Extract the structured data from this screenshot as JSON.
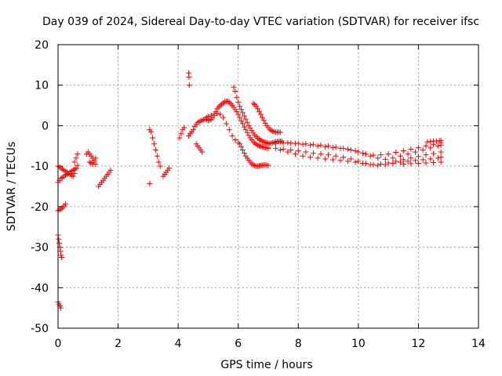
{
  "chart_data": {
    "type": "scatter",
    "title": "Day 039 of 2024, Sidereal Day-to-day VTEC variation (SDTVAR) for receiver ifsc",
    "xlabel": "GPS time / hours",
    "ylabel": "SDTVAR / TECUs",
    "xlim": [
      0,
      14
    ],
    "ylim": [
      -50,
      20
    ],
    "xticks": [
      0,
      2,
      4,
      6,
      8,
      10,
      12,
      14
    ],
    "yticks": [
      -50,
      -40,
      -30,
      -20,
      -10,
      0,
      10,
      20
    ],
    "x_tick_labels": [
      "0",
      "2",
      "4",
      "6",
      "8",
      "10",
      "12",
      "14"
    ],
    "y_tick_labels": [
      "-50",
      "-40",
      "-30",
      "-20",
      "-10",
      "0",
      "10",
      "20"
    ],
    "grid": true,
    "marker": "+",
    "color": "#ff0000",
    "segments": [
      {
        "x": [
          0.0,
          0.05,
          0.1,
          0.15,
          0.2,
          0.25,
          0.3,
          0.35,
          0.4,
          0.45,
          0.5,
          0.55,
          0.6,
          0.65
        ],
        "y": [
          -10.0,
          -10.2,
          -10.5,
          -10.8,
          -11.0,
          -11.3,
          -11.5,
          -11.8,
          -12.0,
          -12.3,
          -12.5,
          -11.8,
          -10.5,
          -9.8
        ]
      },
      {
        "x": [
          0.0,
          0.05,
          0.1,
          0.15,
          0.2,
          0.25,
          0.3,
          0.35,
          0.4,
          0.45,
          0.5,
          0.55,
          0.6
        ],
        "y": [
          -14.0,
          -13.5,
          -13.0,
          -12.8,
          -12.5,
          -12.2,
          -12.0,
          -11.8,
          -11.5,
          -11.2,
          -11.0,
          -10.8,
          -10.5
        ]
      },
      {
        "x": [
          0.0,
          0.05,
          0.1,
          0.15,
          0.2,
          0.25
        ],
        "y": [
          -21.0,
          -20.8,
          -20.5,
          -20.2,
          -19.8,
          -19.3
        ]
      },
      {
        "x": [
          0.0,
          0.02,
          0.04,
          0.06,
          0.08,
          0.1,
          0.12
        ],
        "y": [
          -27.0,
          -28.0,
          -29.0,
          -30.0,
          -31.0,
          -32.0,
          -32.5
        ]
      },
      {
        "x": [
          0.0,
          0.03,
          0.06,
          0.09
        ],
        "y": [
          -43.5,
          -44.0,
          -44.5,
          -45.0
        ]
      },
      {
        "x": [
          0.55,
          0.6,
          0.65
        ],
        "y": [
          -9.0,
          -8.0,
          -7.0
        ]
      },
      {
        "x": [
          0.95,
          1.0,
          1.05,
          1.1,
          1.15,
          1.2,
          1.25
        ],
        "y": [
          -7.0,
          -6.5,
          -7.0,
          -7.5,
          -8.0,
          -8.5,
          -9.5
        ]
      },
      {
        "x": [
          1.05,
          1.1,
          1.15,
          1.2,
          1.25
        ],
        "y": [
          -9.0,
          -9.2,
          -9.5,
          -9.0,
          -8.0
        ]
      },
      {
        "x": [
          1.35,
          1.4,
          1.45,
          1.5,
          1.55,
          1.6,
          1.65,
          1.7,
          1.75
        ],
        "y": [
          -15.0,
          -14.5,
          -14.0,
          -13.5,
          -13.0,
          -12.5,
          -12.0,
          -11.5,
          -11.0
        ]
      },
      {
        "x": [
          3.05,
          3.1,
          3.15,
          3.2,
          3.25,
          3.3,
          3.35,
          3.4
        ],
        "y": [
          -1.0,
          -1.5,
          -3.0,
          -4.5,
          -6.0,
          -7.5,
          -9.0,
          -10.0
        ]
      },
      {
        "x": [
          3.05
        ],
        "y": [
          -14.3
        ]
      },
      {
        "x": [
          3.5,
          3.55,
          3.6,
          3.65,
          3.7
        ],
        "y": [
          -12.5,
          -12.0,
          -11.5,
          -11.0,
          -10.5
        ]
      },
      {
        "x": [
          4.05,
          4.1,
          4.15,
          4.2
        ],
        "y": [
          -3.0,
          -2.0,
          -1.0,
          -0.5
        ]
      },
      {
        "x": [
          4.35,
          4.36,
          4.37
        ],
        "y": [
          13.0,
          12.0,
          10.0
        ]
      },
      {
        "x": [
          4.35,
          4.4,
          4.45,
          4.5,
          4.55,
          4.6,
          4.65,
          4.7,
          4.75,
          4.8,
          4.85,
          4.9,
          4.95,
          5.0,
          5.05,
          5.1,
          5.15,
          5.2,
          5.25,
          5.3,
          5.35,
          5.4,
          5.45,
          5.5,
          5.55,
          5.6,
          5.65,
          5.7,
          5.75,
          5.8,
          5.85,
          5.9,
          5.95,
          6.0,
          6.05,
          6.1,
          6.15,
          6.2,
          6.25,
          6.3,
          6.35,
          6.4,
          6.45,
          6.5,
          6.55,
          6.6,
          6.65,
          6.7,
          6.75,
          6.8,
          6.85,
          6.9,
          6.95,
          7.0
        ],
        "y": [
          -2.5,
          -2.0,
          -1.5,
          -1.0,
          -0.2,
          0.3,
          0.8,
          1.0,
          1.2,
          1.3,
          1.5,
          1.6,
          1.5,
          1.3,
          1.4,
          1.5,
          2.0,
          2.5,
          3.5,
          4.2,
          4.6,
          5.0,
          5.3,
          5.6,
          5.9,
          6.0,
          6.0,
          5.8,
          5.4,
          5.0,
          4.5,
          4.0,
          3.5,
          2.8,
          2.0,
          1.2,
          0.5,
          -0.3,
          -1.0,
          -1.7,
          -2.4,
          -3.0,
          -3.5,
          -4.0,
          -4.3,
          -4.6,
          -4.8,
          -5.0,
          -5.1,
          -5.2,
          -5.3,
          -5.4,
          -5.5,
          -5.6
        ]
      },
      {
        "x": [
          4.95,
          5.0,
          5.1,
          5.2,
          5.3,
          5.4,
          5.5,
          5.6,
          5.7,
          5.8,
          5.9,
          6.0
        ],
        "y": [
          2.0,
          2.3,
          2.6,
          2.9,
          3.0,
          2.8,
          2.0,
          0.5,
          -1.0,
          -2.5,
          -3.5,
          -4.2
        ]
      },
      {
        "x": [
          4.6,
          4.65,
          4.7,
          4.75,
          4.8
        ],
        "y": [
          -4.5,
          -5.0,
          -5.5,
          -6.0,
          -6.5
        ]
      },
      {
        "x": [
          5.85,
          5.9,
          5.95,
          6.0,
          6.05,
          6.1,
          6.15,
          6.2,
          6.25,
          6.3,
          6.35,
          6.4,
          6.45,
          6.5,
          6.55,
          6.6,
          6.65,
          6.7,
          6.75,
          6.8,
          6.85,
          6.9,
          6.95,
          7.0,
          7.05,
          7.1,
          7.15,
          7.2,
          7.25,
          7.3,
          7.35,
          7.4,
          7.45
        ],
        "y": [
          9.5,
          8.5,
          7.0,
          5.8,
          4.8,
          4.0,
          3.2,
          2.4,
          1.6,
          0.8,
          0.0,
          -0.6,
          -1.2,
          -1.8,
          -2.3,
          -2.7,
          -3.1,
          -3.4,
          -3.6,
          -3.8,
          -4.0,
          -4.1,
          -4.2,
          -4.3,
          -4.4,
          -4.3,
          -4.2,
          -4.1,
          -4.0,
          -3.9,
          -3.9,
          -3.8,
          -3.8
        ]
      },
      {
        "x": [
          6.05,
          6.1,
          6.15,
          6.2,
          6.25,
          6.3,
          6.35,
          6.4,
          6.45,
          6.5,
          6.55,
          6.6,
          6.65,
          6.7,
          6.75,
          6.8,
          6.85,
          6.9,
          6.95,
          7.0
        ],
        "y": [
          -4.5,
          -5.2,
          -6.0,
          -6.8,
          -7.5,
          -8.0,
          -8.5,
          -9.0,
          -9.4,
          -9.7,
          -9.9,
          -10.0,
          -10.0,
          -9.9,
          -9.8,
          -9.8,
          -9.7,
          -9.7,
          -9.8,
          -9.8
        ]
      },
      {
        "x": [
          6.5,
          6.55,
          6.6,
          6.65,
          6.7,
          6.75,
          6.8,
          6.85,
          6.9,
          6.95,
          7.0,
          7.05,
          7.1,
          7.15,
          7.2,
          7.25,
          7.3,
          7.35,
          7.4
        ],
        "y": [
          5.5,
          5.2,
          4.8,
          4.2,
          3.5,
          2.8,
          2.0,
          1.3,
          0.6,
          0.0,
          -0.5,
          -0.9,
          -1.2,
          -1.4,
          -1.5,
          -1.6,
          -1.6,
          -1.6,
          -1.6
        ]
      },
      {
        "x": [
          7.0,
          7.25,
          7.5,
          7.75,
          8.0,
          8.25,
          8.5,
          8.75,
          9.0,
          9.25,
          9.5,
          9.75,
          10.0,
          10.25,
          10.5,
          10.75,
          11.0,
          11.25,
          11.5,
          11.75,
          12.0,
          12.25,
          12.5,
          12.75
        ],
        "y": [
          -5.5,
          -5.6,
          -5.8,
          -6.0,
          -6.2,
          -6.5,
          -6.8,
          -7.0,
          -7.2,
          -7.5,
          -7.8,
          -8.2,
          -8.8,
          -9.3,
          -9.6,
          -9.5,
          -9.2,
          -8.8,
          -8.4,
          -8.0,
          -7.6,
          -7.2,
          -6.9,
          -6.5
        ]
      },
      {
        "x": [
          7.4,
          7.65,
          7.9,
          8.15,
          8.4,
          8.65,
          8.9,
          9.15,
          9.4,
          9.65,
          9.9,
          10.15,
          10.4,
          10.65,
          10.9,
          11.15,
          11.4,
          11.65,
          11.9,
          12.15,
          12.4,
          12.65,
          12.75
        ],
        "y": [
          -4.0,
          -4.2,
          -4.4,
          -4.6,
          -4.8,
          -5.0,
          -5.2,
          -5.4,
          -5.6,
          -5.8,
          -6.2,
          -6.8,
          -7.5,
          -8.0,
          -8.3,
          -8.0,
          -7.5,
          -7.0,
          -6.5,
          -6.0,
          -5.5,
          -5.0,
          -4.8
        ]
      },
      {
        "x": [
          7.4,
          7.65,
          7.9,
          8.15,
          8.4,
          8.65,
          8.9,
          9.15,
          9.4,
          9.65,
          9.9,
          10.15,
          10.4,
          10.65,
          10.9,
          11.15,
          11.4,
          11.65,
          11.9,
          12.15,
          12.4,
          12.65,
          12.75
        ],
        "y": [
          -6.0,
          -6.5,
          -7.0,
          -7.5,
          -7.8,
          -8.0,
          -8.2,
          -8.4,
          -8.6,
          -8.8,
          -9.0,
          -9.3,
          -9.6,
          -9.8,
          -9.6,
          -9.3,
          -9.0,
          -8.8,
          -8.6,
          -8.4,
          -8.2,
          -8.0,
          -7.8
        ]
      },
      {
        "x": [
          7.0,
          7.25,
          7.5,
          7.75,
          8.0,
          8.25,
          8.5,
          8.75,
          9.0,
          9.25,
          9.5,
          9.75,
          10.0,
          10.25,
          10.5,
          10.75,
          11.0,
          11.25,
          11.5,
          11.75,
          12.0,
          12.25,
          12.5,
          12.75
        ],
        "y": [
          -4.5,
          -4.4,
          -4.3,
          -4.3,
          -4.4,
          -4.5,
          -4.6,
          -4.8,
          -5.0,
          -5.3,
          -5.6,
          -6.0,
          -6.5,
          -7.0,
          -7.3,
          -7.2,
          -7.0,
          -6.6,
          -6.2,
          -5.8,
          -5.4,
          -5.0,
          -4.6,
          -4.2
        ]
      },
      {
        "x": [
          11.5,
          11.75,
          12.0,
          12.25,
          12.5,
          12.75
        ],
        "y": [
          -9.5,
          -9.4,
          -9.3,
          -9.2,
          -9.1,
          -9.0
        ]
      },
      {
        "x": [
          12.3,
          12.4,
          12.5,
          12.6,
          12.7,
          12.75
        ],
        "y": [
          -4.0,
          -3.9,
          -3.8,
          -3.8,
          -3.7,
          -3.7
        ]
      }
    ]
  }
}
